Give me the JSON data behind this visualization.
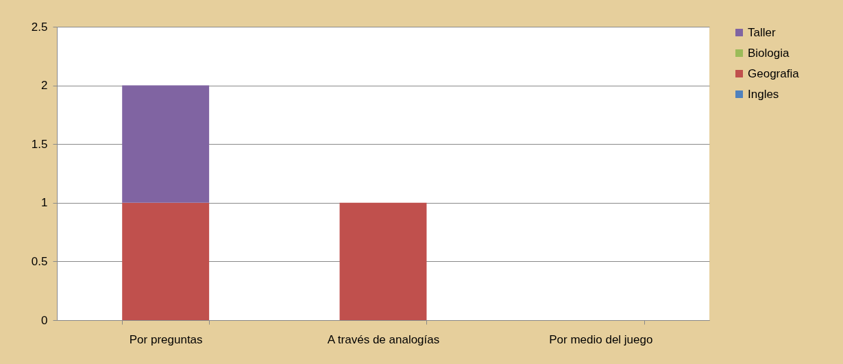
{
  "chart_data": {
    "type": "bar",
    "stacked": true,
    "categories": [
      "Por preguntas",
      "A través de analogías",
      "Por medio del juego"
    ],
    "series": [
      {
        "name": "Ingles",
        "color": "#4f81bd",
        "values": [
          0,
          0,
          0
        ]
      },
      {
        "name": "Geografia",
        "color": "#c0504d",
        "values": [
          1,
          1,
          0
        ]
      },
      {
        "name": "Biologia",
        "color": "#9bbb59",
        "values": [
          0,
          0,
          0
        ]
      },
      {
        "name": "Taller",
        "color": "#8064a2",
        "values": [
          1,
          0,
          0
        ]
      }
    ],
    "ylim": [
      0,
      2.5
    ],
    "yticks": [
      0,
      0.5,
      1,
      1.5,
      2,
      2.5
    ],
    "grid": "y",
    "legend": "right"
  }
}
